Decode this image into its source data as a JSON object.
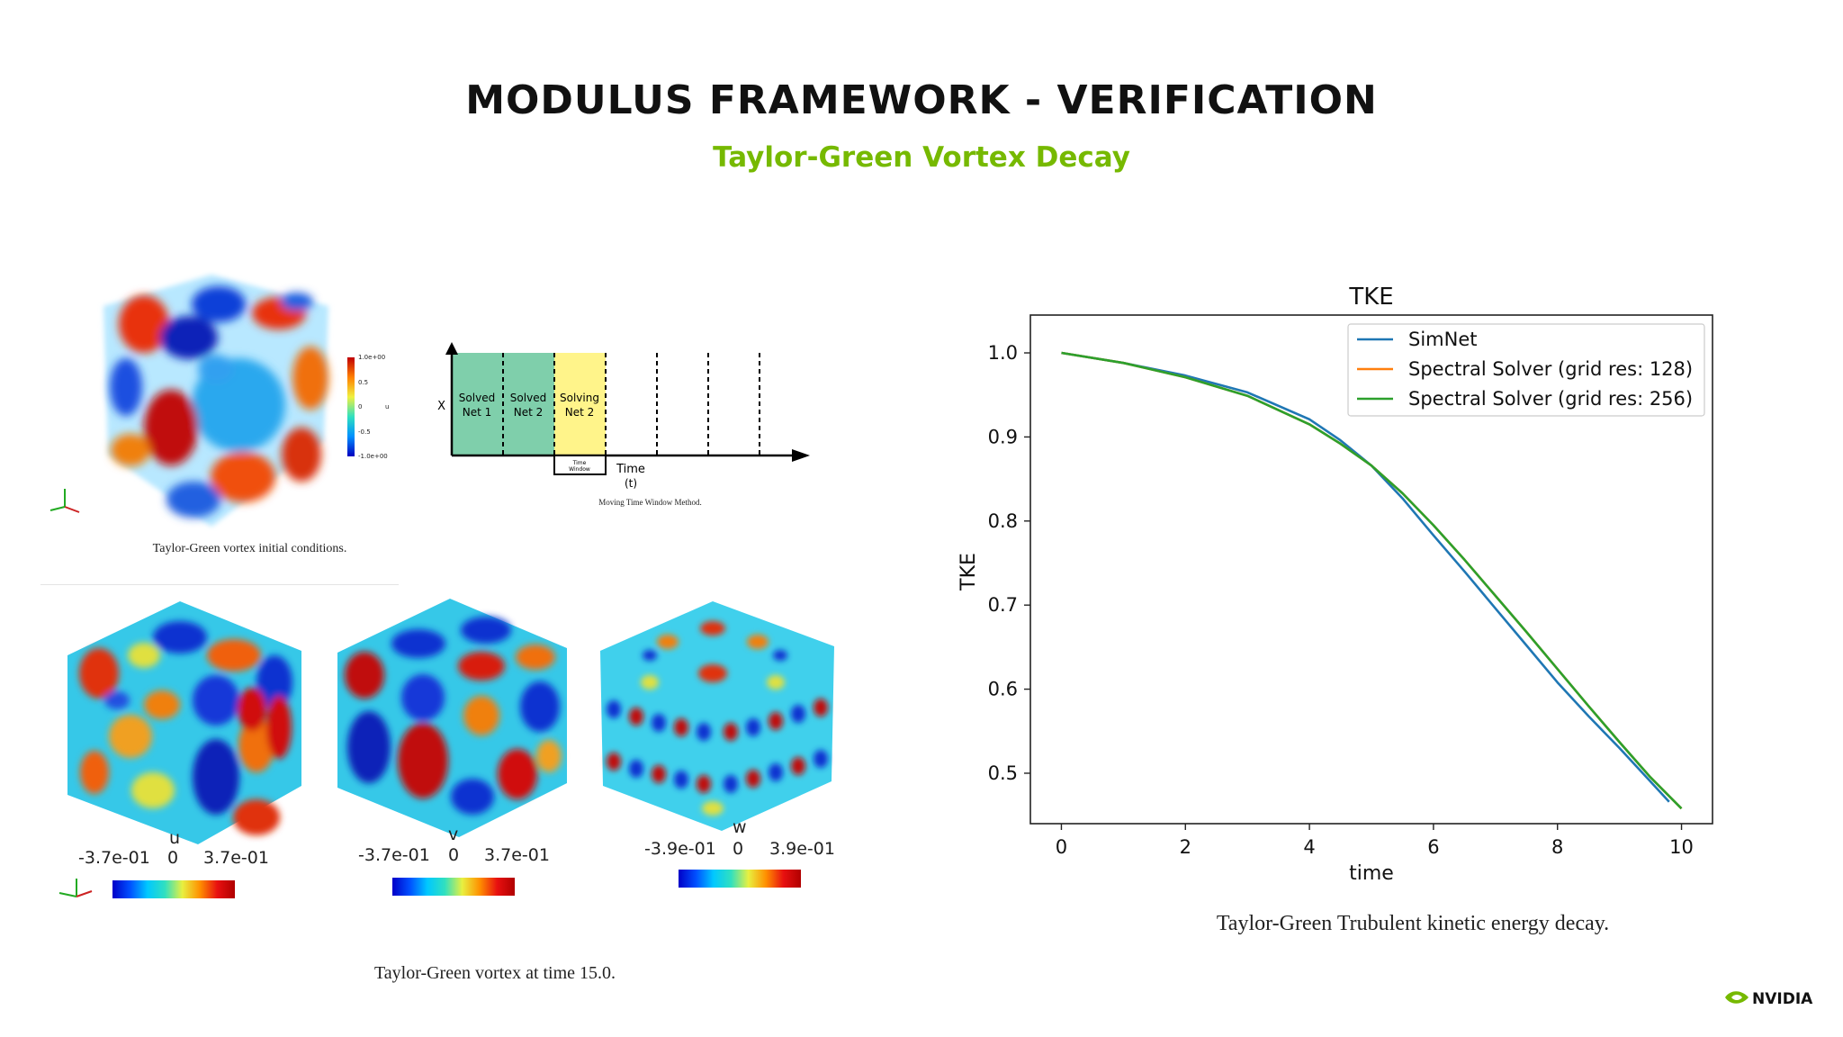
{
  "slide": {
    "title": "MODULUS FRAMEWORK - VERIFICATION",
    "subtitle": "Taylor-Green Vortex Decay",
    "accent_color": "#76b900"
  },
  "initial_conditions": {
    "caption": "Taylor-Green vortex initial conditions.",
    "colorbar_ticks": [
      "1.0e+00",
      "0.5",
      "0",
      "-0.5",
      "-1.0e+00"
    ],
    "colorbar_label": "u"
  },
  "time_window": {
    "caption": "Moving Time Window Method.",
    "y_label": "X",
    "x_label_1": "Time",
    "x_label_2": "(t)",
    "window_label_1": "Time",
    "window_label_2": "Window",
    "blocks": [
      {
        "line1": "Solved",
        "line2": "Net 1"
      },
      {
        "line1": "Solved",
        "line2": "Net 2"
      },
      {
        "line1": "Solving",
        "line2": "Net 2"
      }
    ]
  },
  "time15": {
    "caption": "Taylor-Green vortex at time 15.0.",
    "cubes": [
      {
        "var": "u",
        "min": "-3.7e-01",
        "mid": "0",
        "max": "3.7e-01"
      },
      {
        "var": "v",
        "min": "-3.7e-01",
        "mid": "0",
        "max": "3.7e-01"
      },
      {
        "var": "w",
        "min": "-3.9e-01",
        "mid": "0",
        "max": "3.9e-01"
      }
    ]
  },
  "chart_caption": "Taylor-Green Trubulent kinetic energy decay.",
  "chart_data": {
    "type": "line",
    "title": "TKE",
    "xlabel": "time",
    "ylabel": "TKE",
    "xlim": [
      -0.5,
      10.5
    ],
    "ylim": [
      0.44,
      1.045
    ],
    "xticks": [
      0,
      2,
      4,
      6,
      8,
      10
    ],
    "yticks": [
      0.5,
      0.6,
      0.7,
      0.8,
      0.9,
      1.0
    ],
    "xtick_labels": [
      "0",
      "2",
      "4",
      "6",
      "8",
      "10"
    ],
    "ytick_labels": [
      "0.5",
      "0.6",
      "0.7",
      "0.8",
      "0.9",
      "1.0"
    ],
    "grid": false,
    "legend_position": "top-right",
    "series": [
      {
        "name": "SimNet",
        "color": "#1f77b4",
        "x": [
          0,
          1,
          2,
          3,
          4,
          4.5,
          5,
          5.5,
          6,
          6.5,
          7,
          7.5,
          8,
          8.5,
          9,
          9.5,
          9.8
        ],
        "y": [
          1.0,
          0.988,
          0.973,
          0.953,
          0.921,
          0.896,
          0.866,
          0.827,
          0.783,
          0.74,
          0.696,
          0.652,
          0.608,
          0.568,
          0.53,
          0.49,
          0.466
        ]
      },
      {
        "name": "Spectral Solver (grid res: 128)",
        "color": "#ff7f0e",
        "x": [
          0,
          1,
          2,
          3,
          4,
          4.5,
          5,
          5.5,
          6,
          6.5,
          7,
          7.5,
          8,
          8.5,
          9,
          9.5,
          10
        ],
        "y": [
          1.0,
          0.988,
          0.971,
          0.949,
          0.915,
          0.892,
          0.866,
          0.833,
          0.795,
          0.754,
          0.711,
          0.668,
          0.624,
          0.58,
          0.537,
          0.495,
          0.458
        ]
      },
      {
        "name": "Spectral Solver (grid res: 256)",
        "color": "#2ca02c",
        "x": [
          0,
          1,
          2,
          3,
          4,
          4.5,
          5,
          5.5,
          6,
          6.5,
          7,
          7.5,
          8,
          8.5,
          9,
          9.5,
          10
        ],
        "y": [
          1.0,
          0.988,
          0.971,
          0.949,
          0.915,
          0.892,
          0.866,
          0.833,
          0.795,
          0.754,
          0.711,
          0.668,
          0.624,
          0.58,
          0.537,
          0.495,
          0.458
        ]
      }
    ]
  },
  "brand": {
    "logo_text": "NVIDIA",
    "logo_color": "#76b900"
  }
}
